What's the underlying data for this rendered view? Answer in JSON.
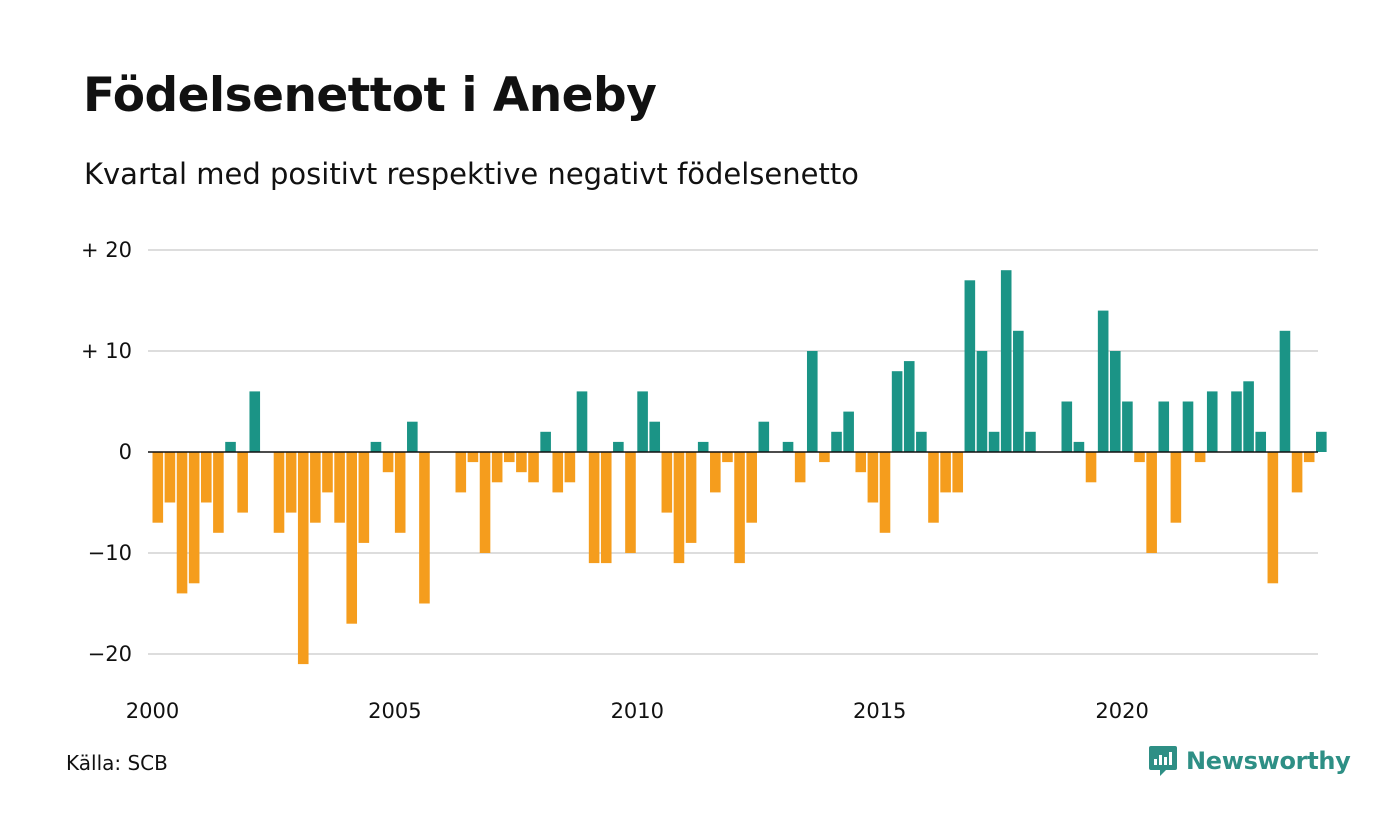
{
  "title": "Födelsenettot i Aneby",
  "subtitle": "Kvartal med positivt respektive negativt födelsenetto",
  "source": "Källa: SCB",
  "brand": {
    "name": "Newsworthy",
    "icon": "newsworthy-logo-icon",
    "color": "#2e8f85"
  },
  "colors": {
    "positive": "#1b9486",
    "negative": "#f59d1d",
    "grid": "#dddddd",
    "zero_line": "#111111"
  },
  "chart_data": {
    "type": "bar",
    "title": "Födelsenettot i Aneby",
    "subtitle": "Kvartal med positivt respektive negativt födelsenetto",
    "xlabel": "",
    "ylabel": "",
    "ylim": [
      -23,
      21
    ],
    "grid": true,
    "legend": "none",
    "y_ticks": [
      {
        "value": 20,
        "label": "+ 20"
      },
      {
        "value": 10,
        "label": "+ 10"
      },
      {
        "value": 0,
        "label": "0"
      },
      {
        "value": -10,
        "label": "−10"
      },
      {
        "value": -20,
        "label": "−20"
      }
    ],
    "x_ticks": [
      {
        "value": 2000,
        "label": "2000"
      },
      {
        "value": 2005,
        "label": "2005"
      },
      {
        "value": 2010,
        "label": "2010"
      },
      {
        "value": 2015,
        "label": "2015"
      },
      {
        "value": 2020,
        "label": "2020"
      }
    ],
    "categories": [
      "2000 K1",
      "2000 K2",
      "2000 K3",
      "2000 K4",
      "2001 K1",
      "2001 K2",
      "2001 K3",
      "2001 K4",
      "2002 K1",
      "2002 K2",
      "2002 K3",
      "2002 K4",
      "2003 K1",
      "2003 K2",
      "2003 K3",
      "2003 K4",
      "2004 K1",
      "2004 K2",
      "2004 K3",
      "2004 K4",
      "2005 K1",
      "2005 K2",
      "2005 K3",
      "2005 K4",
      "2006 K1",
      "2006 K2",
      "2006 K3",
      "2006 K4",
      "2007 K1",
      "2007 K2",
      "2007 K3",
      "2007 K4",
      "2008 K1",
      "2008 K2",
      "2008 K3",
      "2008 K4",
      "2009 K1",
      "2009 K2",
      "2009 K3",
      "2009 K4",
      "2010 K1",
      "2010 K2",
      "2010 K3",
      "2010 K4",
      "2011 K1",
      "2011 K2",
      "2011 K3",
      "2011 K4",
      "2012 K1",
      "2012 K2",
      "2012 K3",
      "2012 K4",
      "2013 K1",
      "2013 K2",
      "2013 K3",
      "2013 K4",
      "2014 K1",
      "2014 K2",
      "2014 K3",
      "2014 K4",
      "2015 K1",
      "2015 K2",
      "2015 K3",
      "2015 K4",
      "2016 K1",
      "2016 K2",
      "2016 K3",
      "2016 K4",
      "2017 K1",
      "2017 K2",
      "2017 K3",
      "2017 K4",
      "2018 K1",
      "2018 K2",
      "2018 K3",
      "2018 K4",
      "2019 K1",
      "2019 K2",
      "2019 K3",
      "2019 K4",
      "2020 K1",
      "2020 K2",
      "2020 K3",
      "2020 K4",
      "2021 K1",
      "2021 K2",
      "2021 K3",
      "2021 K4",
      "2022 K1",
      "2022 K2",
      "2022 K3",
      "2022 K4",
      "2023 K1",
      "2023 K2",
      "2023 K3",
      "2023 K4",
      "2024 K1"
    ],
    "values": [
      -7,
      -5,
      -14,
      -13,
      -5,
      -8,
      1,
      -6,
      6,
      0,
      -8,
      -6,
      -21,
      -7,
      -4,
      -7,
      -17,
      -9,
      1,
      -2,
      -8,
      3,
      -15,
      0,
      0,
      -4,
      -1,
      -10,
      -3,
      -1,
      -2,
      -3,
      2,
      -4,
      -3,
      6,
      -11,
      -11,
      1,
      -10,
      6,
      3,
      -6,
      -11,
      -9,
      1,
      -4,
      -1,
      -11,
      -7,
      3,
      0,
      1,
      -3,
      10,
      -1,
      2,
      4,
      -2,
      -5,
      -8,
      8,
      9,
      2,
      -7,
      -4,
      -4,
      17,
      10,
      2,
      18,
      12,
      2,
      0,
      0,
      5,
      1,
      -3,
      14,
      10,
      5,
      -1,
      -10,
      5,
      -7,
      5,
      -1,
      6,
      0,
      6,
      7,
      2,
      -13,
      12,
      -4,
      -1,
      2
    ]
  }
}
